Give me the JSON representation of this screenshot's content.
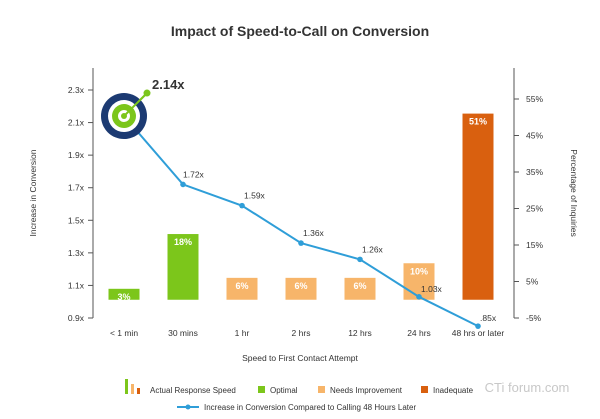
{
  "chart_data": {
    "type": "bar",
    "title": "Impact of Speed-to-Call on Conversion",
    "xlabel": "Speed to First Contact Attempt",
    "ylabel": "Increase in Conversion",
    "y2label": "Percentage of Inquiries",
    "categories": [
      "< 1 min",
      "30 mins",
      "1 hr",
      "2 hrs",
      "12 hrs",
      "24 hrs",
      "48 hrs or later"
    ],
    "yticks": [
      "0.9x",
      "1.1x",
      "1.3x",
      "1.5x",
      "1.7x",
      "1.9x",
      "2.1x",
      "2.3x"
    ],
    "y2ticks": [
      "-5%",
      "5%",
      "15%",
      "25%",
      "35%",
      "45%",
      "55%"
    ],
    "ylim": [
      0.9,
      2.3
    ],
    "y2lim": [
      -5,
      55
    ],
    "bars": {
      "name": "Percentage of Inquiries",
      "values": [
        3,
        18,
        6,
        6,
        6,
        10,
        51
      ],
      "labels": [
        "3%",
        "18%",
        "6%",
        "6%",
        "6%",
        "10%",
        "51%"
      ],
      "categories_status": [
        "optimal",
        "optimal",
        "needs_improvement",
        "needs_improvement",
        "needs_improvement",
        "needs_improvement",
        "inadequate"
      ],
      "baseline": 0
    },
    "line": {
      "name": "Increase in Conversion Compared to Calling 48 Hours Later",
      "values": [
        2.14,
        1.72,
        1.59,
        1.36,
        1.26,
        1.03,
        0.85
      ],
      "labels": [
        "2.14x",
        "1.72x",
        "1.59x",
        "1.36x",
        "1.26x",
        "1.03x",
        ".85x"
      ]
    },
    "legend": {
      "actual_response_speed": "Actual Response Speed",
      "optimal": "Optimal",
      "needs_improvement": "Needs Improvement",
      "inadequate": "Inadequate",
      "line": "Increase in Conversion Compared to Calling 48 Hours Later"
    }
  },
  "colors": {
    "optimal": "#7cc61b",
    "needs_improvement": "#f7b56a",
    "inadequate": "#d9600f",
    "line": "#2f9ed8",
    "target_outer": "#1c3a72",
    "target_inner": "#7cc61b"
  },
  "watermark": "CTi forum.com"
}
